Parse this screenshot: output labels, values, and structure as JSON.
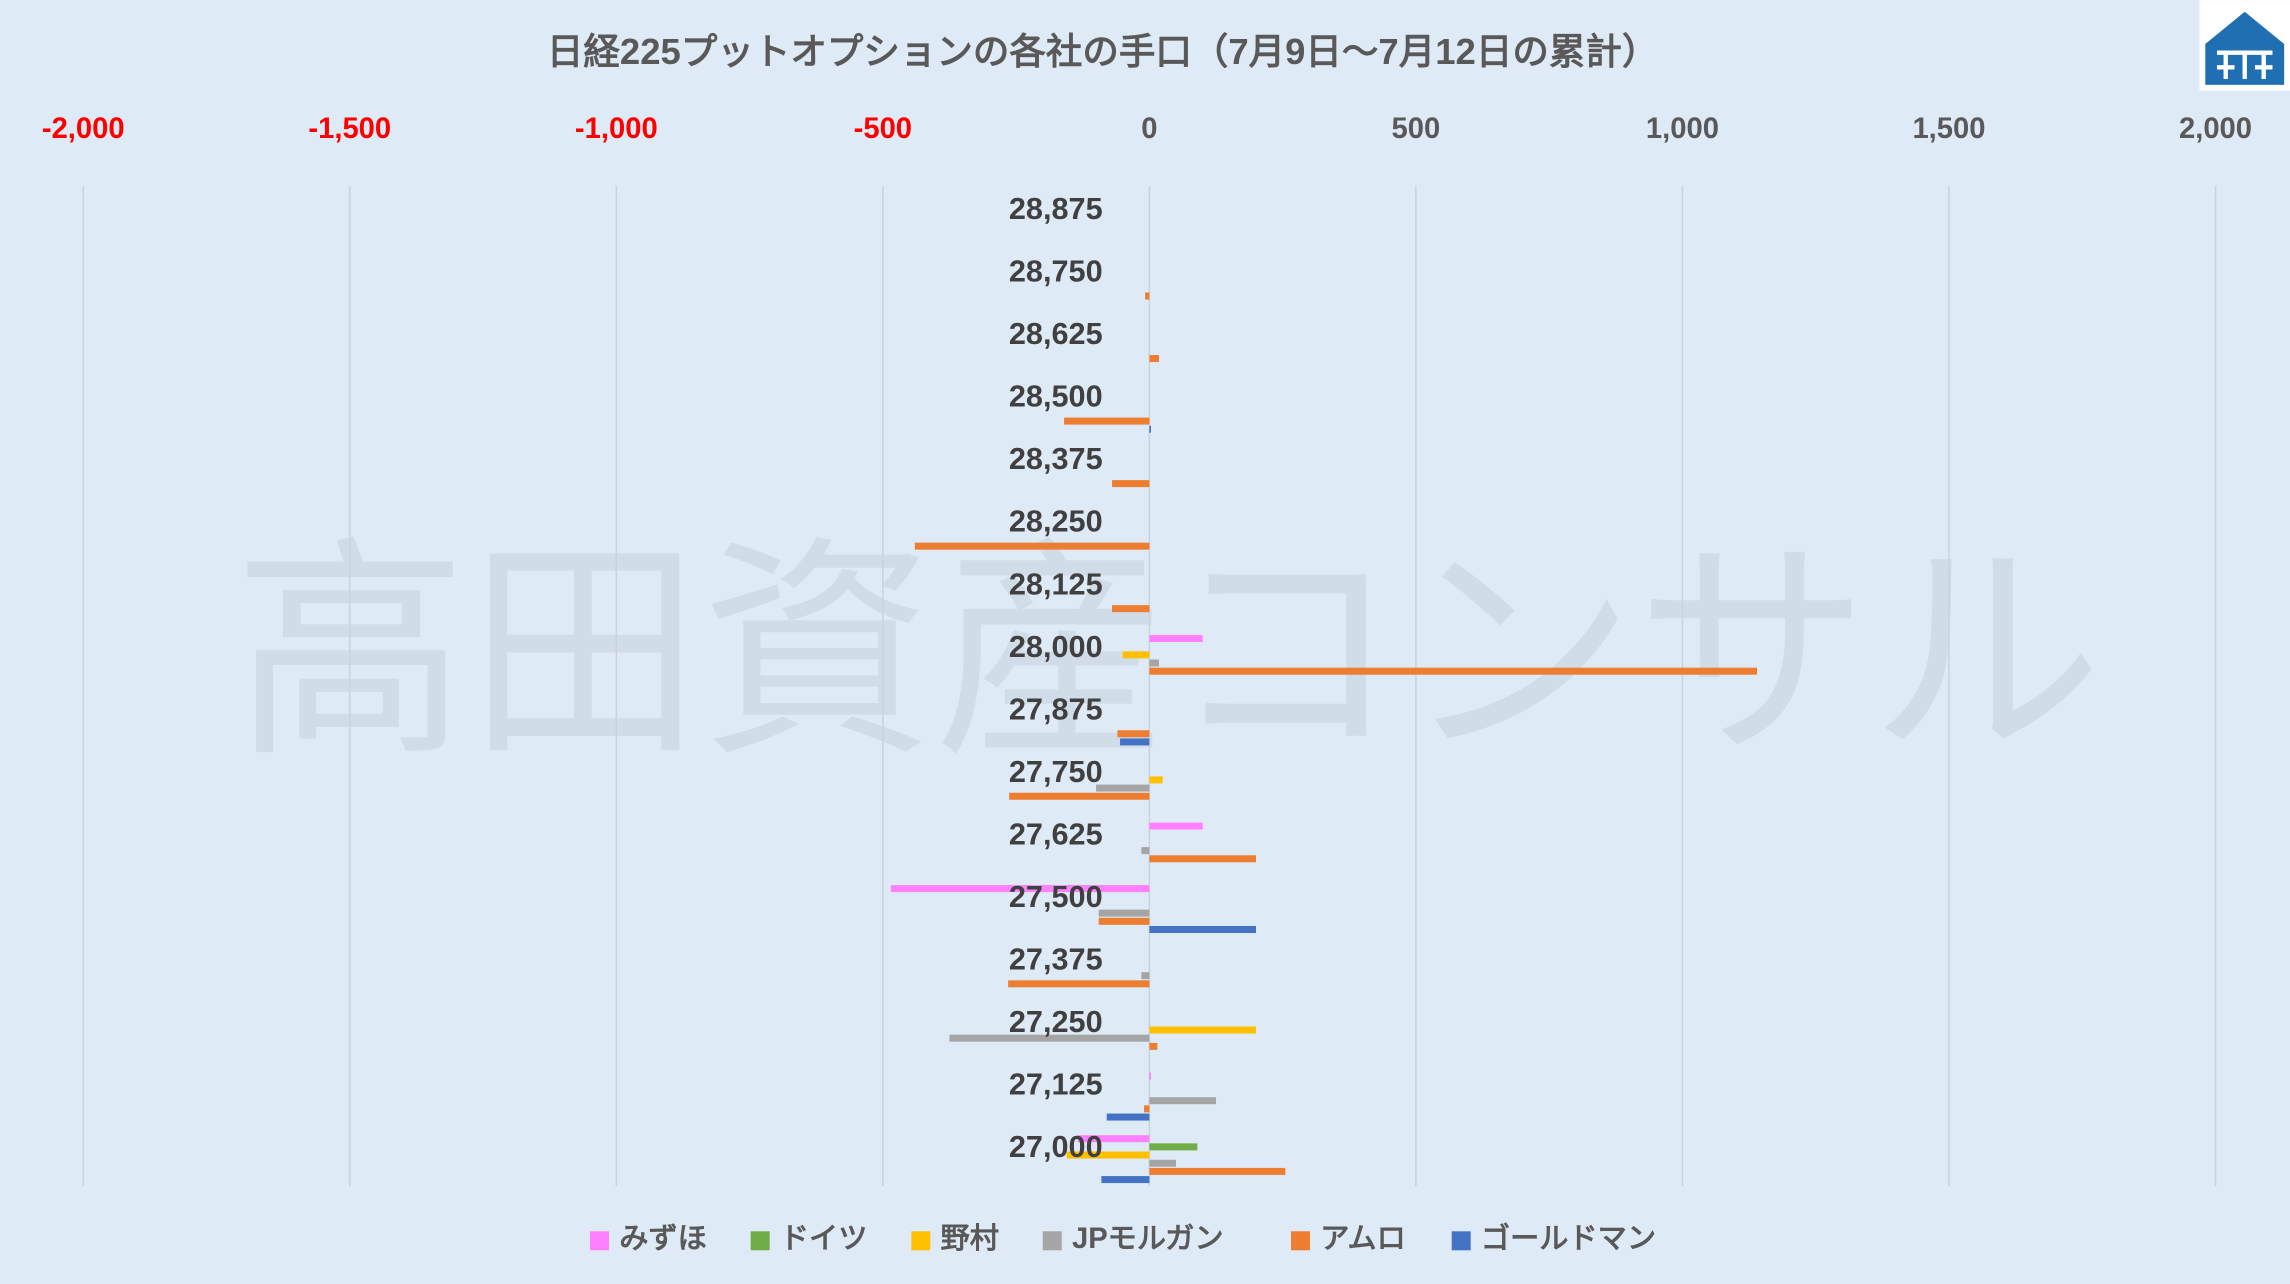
{
  "chart_data": {
    "type": "hbar",
    "title": "日経225プットオプションの各社の手口（7月9日～7月12日の累計）",
    "watermark": "高田資産コンサル",
    "categories": [
      "28,875",
      "28,750",
      "28,625",
      "28,500",
      "28,375",
      "28,250",
      "28,125",
      "28,000",
      "27,875",
      "27,750",
      "27,625",
      "27,500",
      "27,375",
      "27,250",
      "27,125",
      "27,000"
    ],
    "series": [
      {
        "name": "みずほ",
        "color": "#ff80ff",
        "values": [
          0,
          0,
          0,
          0,
          0,
          0,
          0,
          100,
          0,
          0,
          100,
          -485,
          0,
          0,
          3,
          -135
        ]
      },
      {
        "name": "ドイツ",
        "color": "#70ad47",
        "values": [
          0,
          0,
          0,
          0,
          0,
          0,
          0,
          0,
          0,
          0,
          0,
          0,
          0,
          0,
          0,
          90
        ]
      },
      {
        "name": "野村",
        "color": "#ffc000",
        "values": [
          0,
          0,
          0,
          0,
          0,
          0,
          0,
          -50,
          0,
          25,
          0,
          0,
          0,
          200,
          0,
          -155
        ]
      },
      {
        "name": "JPモルガン",
        "color": "#a5a5a5",
        "values": [
          0,
          0,
          0,
          0,
          0,
          0,
          0,
          18,
          0,
          -100,
          -15,
          -95,
          -15,
          -375,
          125,
          50
        ]
      },
      {
        "name": "アムロ",
        "color": "#ed7d31",
        "values": [
          0,
          -8,
          18,
          -160,
          -70,
          -440,
          -70,
          1140,
          -60,
          -263,
          200,
          -95,
          -265,
          15,
          -10,
          255
        ]
      },
      {
        "name": "ゴールドマン",
        "color": "#4472c4",
        "values": [
          0,
          0,
          0,
          3,
          0,
          0,
          0,
          0,
          -55,
          0,
          0,
          200,
          0,
          0,
          -80,
          -90
        ]
      }
    ],
    "xlim": [
      -2000,
      2000
    ],
    "xticks": [
      {
        "value": -2000,
        "label": "-2,000"
      },
      {
        "value": -1500,
        "label": "-1,500"
      },
      {
        "value": -1000,
        "label": "-1,000"
      },
      -500,
      0,
      500,
      {
        "value": 1000,
        "label": "1,000"
      },
      {
        "value": 1500,
        "label": "1,500"
      },
      {
        "value": 2000,
        "label": "2,000"
      }
    ],
    "x_axis_position": "top",
    "negative_tick_color": "#ff0000",
    "grid": true,
    "legend": "bottom"
  }
}
